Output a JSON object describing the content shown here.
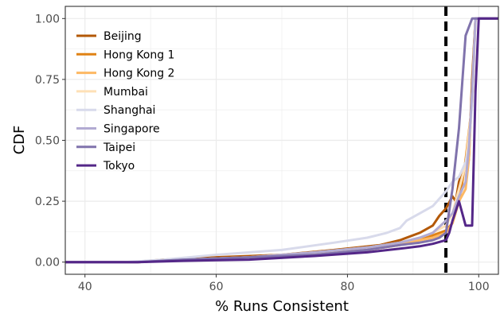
{
  "chart_data": {
    "type": "line",
    "title": "",
    "xlabel": "% Runs Consistent",
    "ylabel": "CDF",
    "xlim": [
      37,
      103
    ],
    "ylim": [
      -0.05,
      1.05
    ],
    "x_ticks": [
      40,
      60,
      80,
      100
    ],
    "x_tick_labels": [
      "40",
      "60",
      "80",
      "100"
    ],
    "y_ticks": [
      0,
      0.25,
      0.5,
      0.75,
      1.0
    ],
    "y_tick_labels": [
      "0.00",
      "0.25",
      "0.50",
      "0.75",
      "1.00"
    ],
    "grid": true,
    "legend_position": "top-left",
    "reference_line": {
      "x": 95,
      "style": "dashed",
      "color": "#000000"
    },
    "series": [
      {
        "name": "Beijing",
        "color": "#b35806",
        "points": [
          [
            35,
            0
          ],
          [
            47,
            0
          ],
          [
            52,
            0.01
          ],
          [
            60,
            0.02
          ],
          [
            70,
            0.03
          ],
          [
            78,
            0.05
          ],
          [
            85,
            0.07
          ],
          [
            88,
            0.09
          ],
          [
            91,
            0.12
          ],
          [
            93,
            0.15
          ],
          [
            94,
            0.19
          ],
          [
            95,
            0.22
          ],
          [
            96,
            0.27
          ],
          [
            96.5,
            0.25
          ],
          [
            97,
            0.33
          ],
          [
            97.5,
            0.37
          ],
          [
            98,
            0.41
          ],
          [
            98.5,
            0.42
          ],
          [
            99,
            0.75
          ],
          [
            99.5,
            1.0
          ],
          [
            103,
            1.0
          ]
        ]
      },
      {
        "name": "Hong Kong 1",
        "color": "#e08214",
        "points": [
          [
            35,
            0
          ],
          [
            48,
            0
          ],
          [
            55,
            0.01
          ],
          [
            65,
            0.02
          ],
          [
            75,
            0.03
          ],
          [
            83,
            0.05
          ],
          [
            88,
            0.07
          ],
          [
            91,
            0.09
          ],
          [
            93,
            0.11
          ],
          [
            95,
            0.13
          ],
          [
            96,
            0.16
          ],
          [
            97,
            0.25
          ],
          [
            97.5,
            0.33
          ],
          [
            98,
            0.42
          ],
          [
            99,
            0.65
          ],
          [
            99.5,
            1.0
          ],
          [
            103,
            1.0
          ]
        ]
      },
      {
        "name": "Hong Kong 2",
        "color": "#fdb863",
        "points": [
          [
            35,
            0
          ],
          [
            48,
            0
          ],
          [
            55,
            0.01
          ],
          [
            65,
            0.02
          ],
          [
            75,
            0.03
          ],
          [
            83,
            0.05
          ],
          [
            88,
            0.07
          ],
          [
            91,
            0.09
          ],
          [
            93,
            0.1
          ],
          [
            95,
            0.12
          ],
          [
            96,
            0.16
          ],
          [
            97,
            0.25
          ],
          [
            98,
            0.3
          ],
          [
            98.5,
            0.42
          ],
          [
            99,
            0.7
          ],
          [
            99.5,
            1.0
          ],
          [
            103,
            1.0
          ]
        ]
      },
      {
        "name": "Mumbai",
        "color": "#fee0b6",
        "points": [
          [
            35,
            0
          ],
          [
            48,
            0
          ],
          [
            55,
            0.01
          ],
          [
            65,
            0.02
          ],
          [
            75,
            0.04
          ],
          [
            83,
            0.06
          ],
          [
            88,
            0.08
          ],
          [
            91,
            0.1
          ],
          [
            93,
            0.12
          ],
          [
            95,
            0.15
          ],
          [
            96,
            0.2
          ],
          [
            97,
            0.3
          ],
          [
            98,
            0.4
          ],
          [
            99,
            0.65
          ],
          [
            99.5,
            1.0
          ],
          [
            103,
            1.0
          ]
        ]
      },
      {
        "name": "Shanghai",
        "color": "#d8daeb",
        "points": [
          [
            35,
            0
          ],
          [
            46,
            0
          ],
          [
            52,
            0.01
          ],
          [
            60,
            0.03
          ],
          [
            70,
            0.05
          ],
          [
            78,
            0.08
          ],
          [
            83,
            0.1
          ],
          [
            86,
            0.12
          ],
          [
            88,
            0.14
          ],
          [
            89,
            0.17
          ],
          [
            91,
            0.2
          ],
          [
            93,
            0.23
          ],
          [
            94,
            0.26
          ],
          [
            95,
            0.29
          ],
          [
            96,
            0.33
          ],
          [
            97,
            0.35
          ],
          [
            98,
            0.41
          ],
          [
            98.5,
            0.47
          ],
          [
            99,
            0.65
          ],
          [
            99.5,
            1.0
          ],
          [
            103,
            1.0
          ]
        ]
      },
      {
        "name": "Singapore",
        "color": "#b2abd2",
        "points": [
          [
            35,
            0
          ],
          [
            48,
            0
          ],
          [
            55,
            0.01
          ],
          [
            65,
            0.02
          ],
          [
            75,
            0.04
          ],
          [
            83,
            0.06
          ],
          [
            88,
            0.08
          ],
          [
            91,
            0.1
          ],
          [
            93,
            0.12
          ],
          [
            95,
            0.17
          ],
          [
            96,
            0.2
          ],
          [
            97,
            0.27
          ],
          [
            97.5,
            0.3
          ],
          [
            98,
            0.33
          ],
          [
            98.5,
            0.47
          ],
          [
            99,
            0.7
          ],
          [
            99.5,
            1.0
          ],
          [
            103,
            1.0
          ]
        ]
      },
      {
        "name": "Taipei",
        "color": "#8073ac",
        "points": [
          [
            35,
            0
          ],
          [
            48,
            0
          ],
          [
            55,
            0.01
          ],
          [
            65,
            0.02
          ],
          [
            75,
            0.03
          ],
          [
            83,
            0.05
          ],
          [
            88,
            0.07
          ],
          [
            91,
            0.08
          ],
          [
            93,
            0.09
          ],
          [
            94,
            0.1
          ],
          [
            95,
            0.12
          ],
          [
            96,
            0.3
          ],
          [
            97,
            0.55
          ],
          [
            98,
            0.93
          ],
          [
            99,
            1.0
          ],
          [
            103,
            1.0
          ]
        ]
      },
      {
        "name": "Tokyo",
        "color": "#542788",
        "points": [
          [
            35,
            0
          ],
          [
            48,
            0
          ],
          [
            55,
            0.005
          ],
          [
            65,
            0.01
          ],
          [
            75,
            0.025
          ],
          [
            83,
            0.04
          ],
          [
            88,
            0.055
          ],
          [
            91,
            0.065
          ],
          [
            93,
            0.075
          ],
          [
            95,
            0.09
          ],
          [
            95.5,
            0.12
          ],
          [
            96,
            0.17
          ],
          [
            97,
            0.25
          ],
          [
            98,
            0.15
          ],
          [
            99,
            0.15
          ],
          [
            99.5,
            0.7
          ],
          [
            100,
            1.0
          ],
          [
            103,
            1.0
          ]
        ]
      }
    ]
  }
}
